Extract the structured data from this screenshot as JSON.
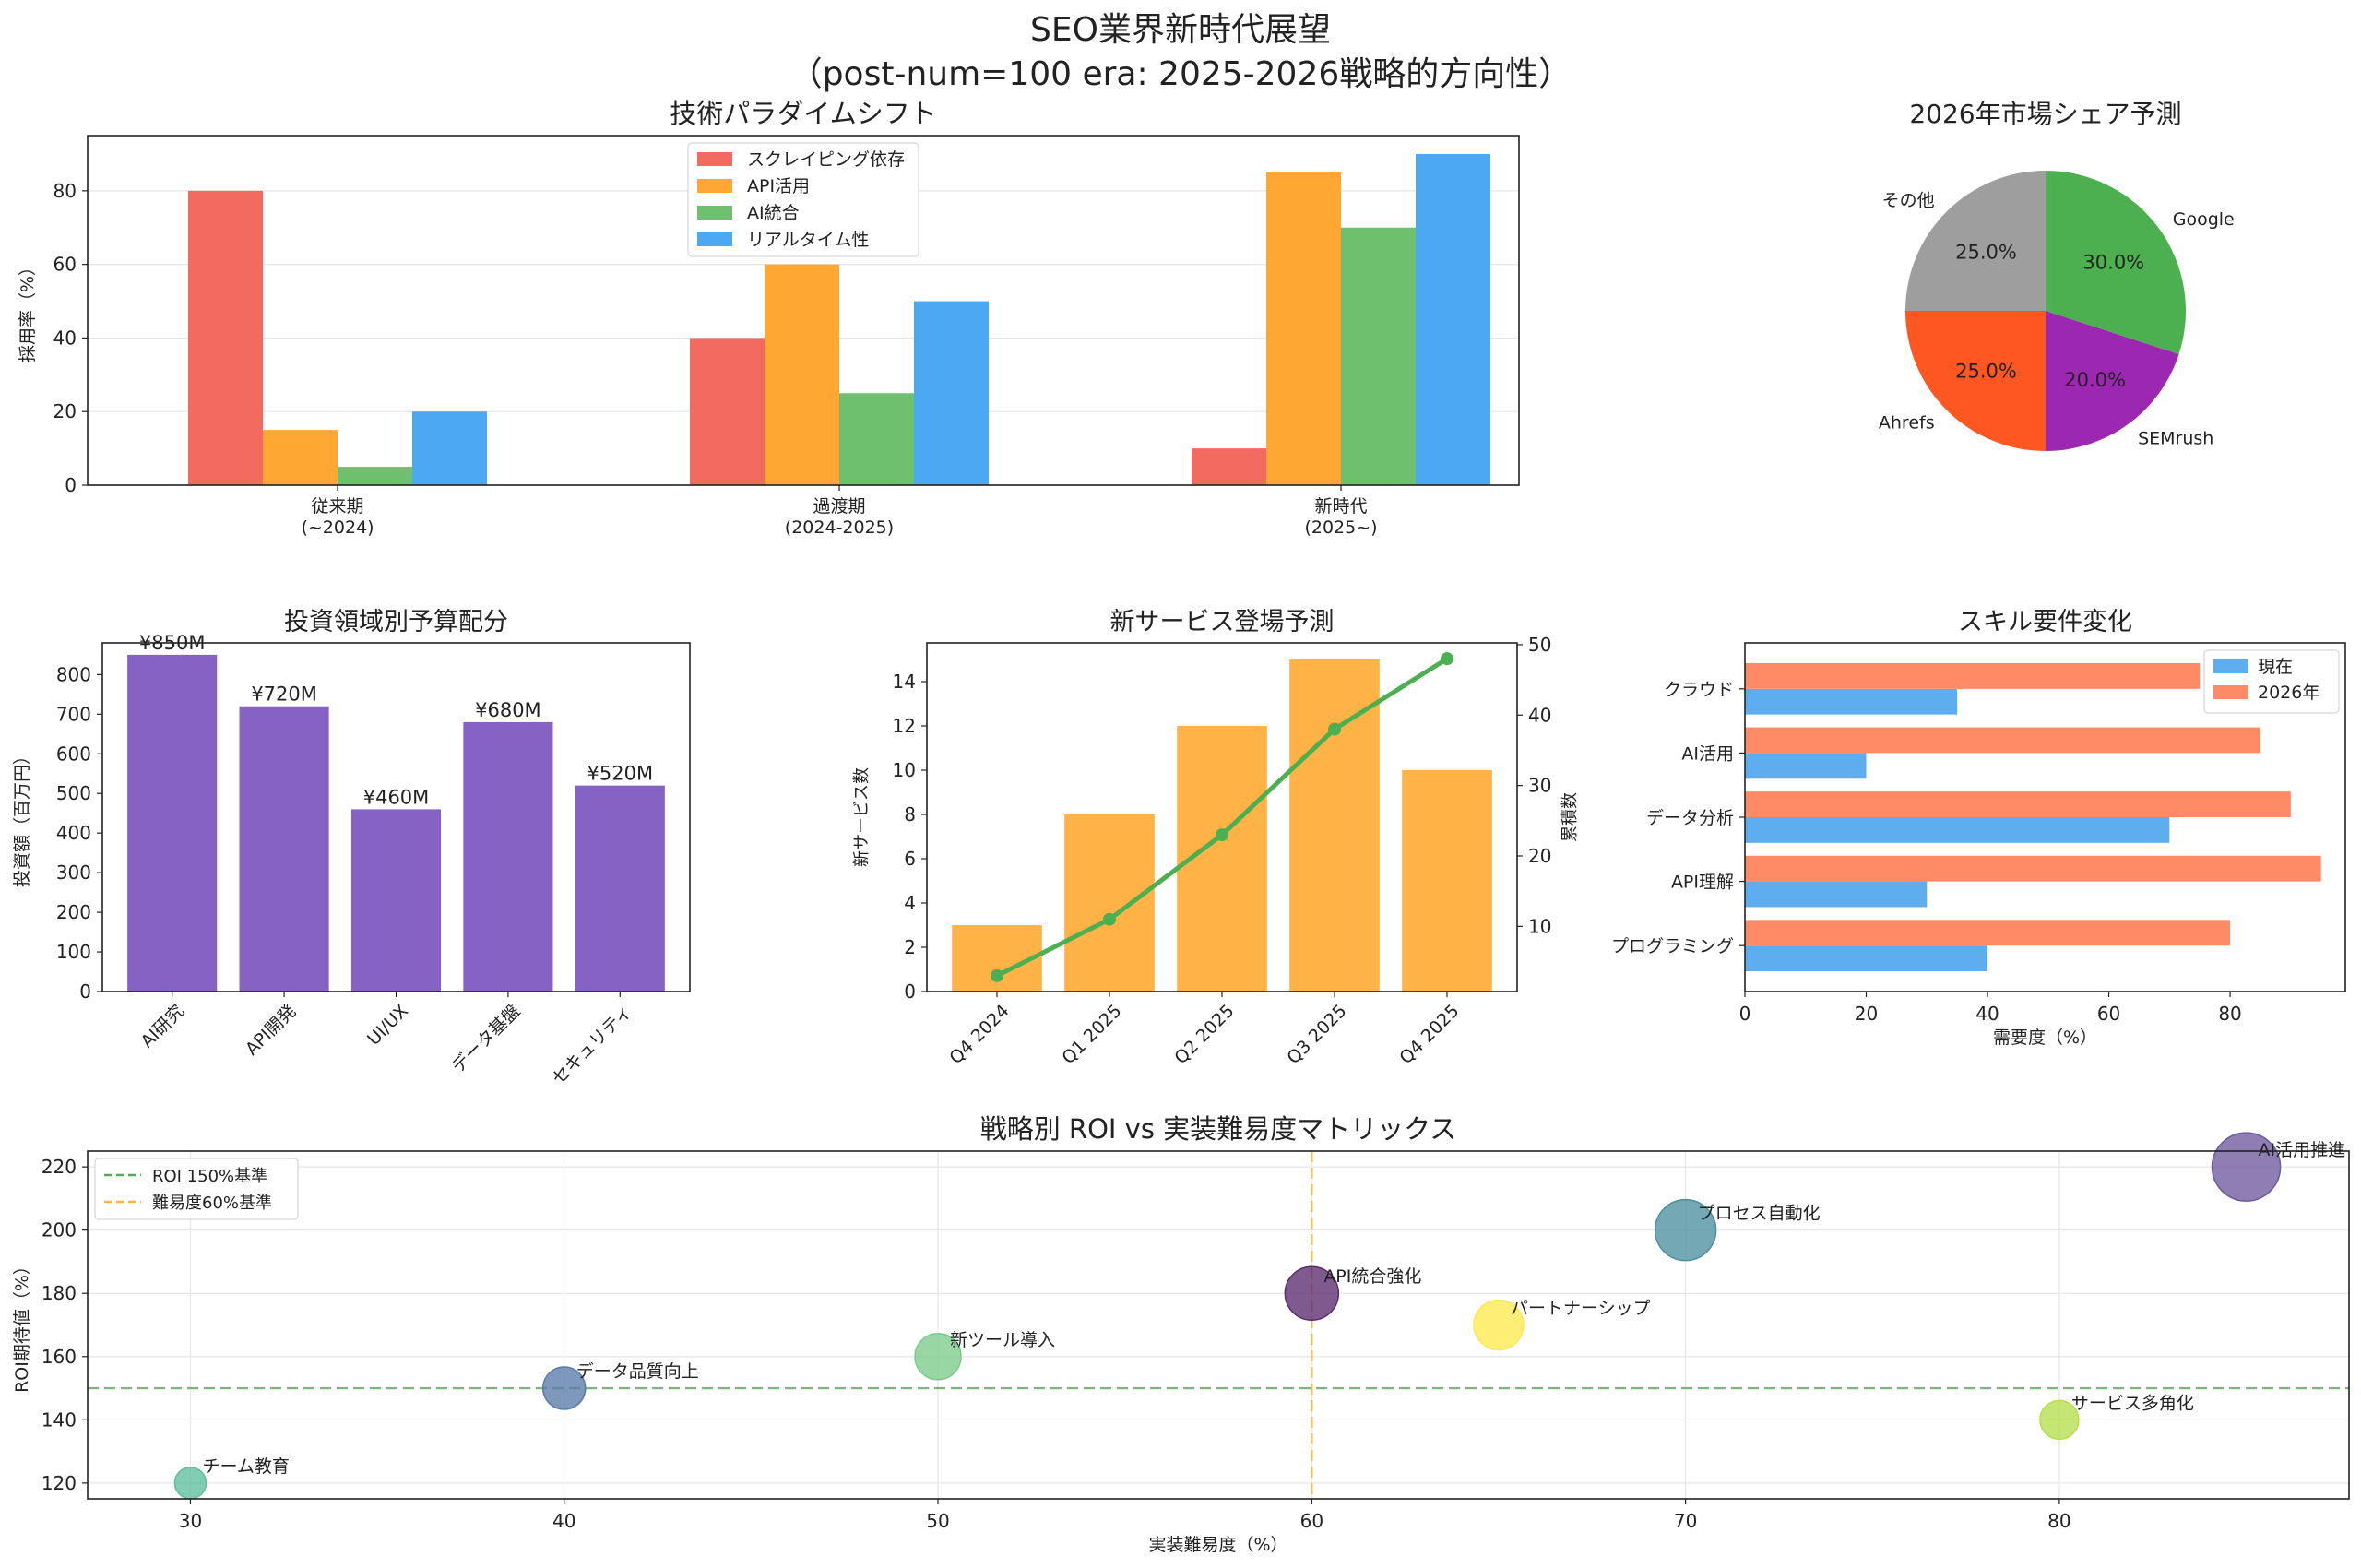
{
  "title": {
    "line1": "SEO業界新時代展望",
    "line2": "（post-num=100 era: 2025-2026戦略的方向性）"
  },
  "colors": {
    "scraping": "#F26A60",
    "api": "#FFA633",
    "ai": "#6EBF6E",
    "realtime": "#4CA8F2",
    "invest": "#8662C4",
    "services": "#FFB347",
    "cumulative": "#4CAF50",
    "skill_now": "#5EAEEF",
    "skill_2026": "#FF8A65",
    "roi_line": "#4CAF50",
    "diff_line": "#FFB347"
  },
  "chart_data": [
    {
      "id": "paradigm",
      "type": "bar",
      "title": "技術パラダイムシフト",
      "ylabel": "採用率（%）",
      "ylim": [
        0,
        95
      ],
      "yticks": [
        0,
        20,
        40,
        60,
        80
      ],
      "categories": [
        "従来期\n(~2024)",
        "過渡期\n(2024-2025)",
        "新時代\n(2025~)"
      ],
      "series": [
        {
          "name": "スクレイピング依存",
          "values": [
            80,
            40,
            10
          ]
        },
        {
          "name": "API活用",
          "values": [
            15,
            60,
            85
          ]
        },
        {
          "name": "AI統合",
          "values": [
            5,
            25,
            70
          ]
        },
        {
          "name": "リアルタイム性",
          "values": [
            20,
            50,
            90
          ]
        }
      ],
      "legend": "top-center"
    },
    {
      "id": "share",
      "type": "pie",
      "title": "2026年市場シェア予測",
      "labels": [
        "その他",
        "Ahrefs",
        "SEMrush",
        "Google"
      ],
      "values": [
        25.0,
        25.0,
        20.0,
        30.0
      ],
      "pct_labels": [
        "25.0%",
        "25.0%",
        "20.0%",
        "30.0%"
      ],
      "slice_colors": [
        "#9E9E9E",
        "#FF5722",
        "#9C27B0",
        "#4CAF50"
      ]
    },
    {
      "id": "invest",
      "type": "bar",
      "title": "投資領域別予算配分",
      "ylabel": "投資額（百万円）",
      "ylim": [
        0,
        880
      ],
      "yticks": [
        0,
        100,
        200,
        300,
        400,
        500,
        600,
        700,
        800
      ],
      "categories": [
        "AI研究",
        "API開発",
        "UI/UX",
        "データ基盤",
        "セキュリティ"
      ],
      "values": [
        850,
        720,
        460,
        680,
        520
      ],
      "value_labels": [
        "¥850M",
        "¥720M",
        "¥460M",
        "¥680M",
        "¥520M"
      ]
    },
    {
      "id": "services",
      "type": "bar+line",
      "title": "新サービス登場予測",
      "ylabel_left": "新サービス数",
      "ylabel_right": "累積数",
      "categories": [
        "Q4 2024",
        "Q1 2025",
        "Q2 2025",
        "Q3 2025",
        "Q4 2025"
      ],
      "bars": [
        3,
        8,
        12,
        15,
        10
      ],
      "cumulative": [
        3,
        11,
        23,
        38,
        48
      ],
      "ylim_left": [
        0,
        15.75
      ],
      "yticks_left": [
        0,
        2,
        4,
        6,
        8,
        10,
        12,
        14
      ],
      "ylim_right": [
        0.75,
        50.25
      ],
      "yticks_right": [
        10,
        20,
        30,
        40,
        50
      ]
    },
    {
      "id": "skills",
      "type": "barh",
      "title": "スキル要件変化",
      "xlabel": "需要度（%）",
      "xlim": [
        0,
        99
      ],
      "xticks": [
        0,
        20,
        40,
        60,
        80
      ],
      "categories": [
        "プログラミング",
        "API理解",
        "データ分析",
        "AI活用",
        "クラウド"
      ],
      "series": [
        {
          "name": "現在",
          "values": [
            40,
            30,
            70,
            20,
            35
          ]
        },
        {
          "name": "2026年",
          "values": [
            80,
            95,
            90,
            85,
            75
          ]
        }
      ],
      "legend": "top-right"
    },
    {
      "id": "roi",
      "type": "scatter",
      "title": "戦略別 ROI vs 実装難易度マトリックス",
      "xlabel": "実装難易度（%）",
      "ylabel": "ROI期待値（%）",
      "xlim": [
        27.25,
        87.75
      ],
      "ylim": [
        115,
        225
      ],
      "xticks": [
        30,
        40,
        50,
        60,
        70,
        80
      ],
      "yticks": [
        120,
        140,
        160,
        180,
        200,
        220
      ],
      "points": [
        {
          "label": "チーム教育",
          "x": 30,
          "y": 120,
          "color": "#5DBE9E"
        },
        {
          "label": "データ品質向上",
          "x": 40,
          "y": 150,
          "color": "#5A7BA8"
        },
        {
          "label": "新ツール導入",
          "x": 50,
          "y": 160,
          "color": "#7BCB8A"
        },
        {
          "label": "API統合強化",
          "x": 60,
          "y": 180,
          "color": "#5B2C6F"
        },
        {
          "label": "パートナーシップ",
          "x": 65,
          "y": 170,
          "color": "#FDE94F"
        },
        {
          "label": "プロセス自動化",
          "x": 70,
          "y": 200,
          "color": "#4E8FA0"
        },
        {
          "label": "サービス多角化",
          "x": 80,
          "y": 140,
          "color": "#B5DE4D"
        },
        {
          "label": "AI活用推進",
          "x": 85,
          "y": 220,
          "color": "#6E5A9E"
        }
      ],
      "hline": {
        "y": 150,
        "label": "ROI 150%基準"
      },
      "vline": {
        "x": 60,
        "label": "難易度60%基準"
      },
      "legend": "top-left"
    }
  ]
}
